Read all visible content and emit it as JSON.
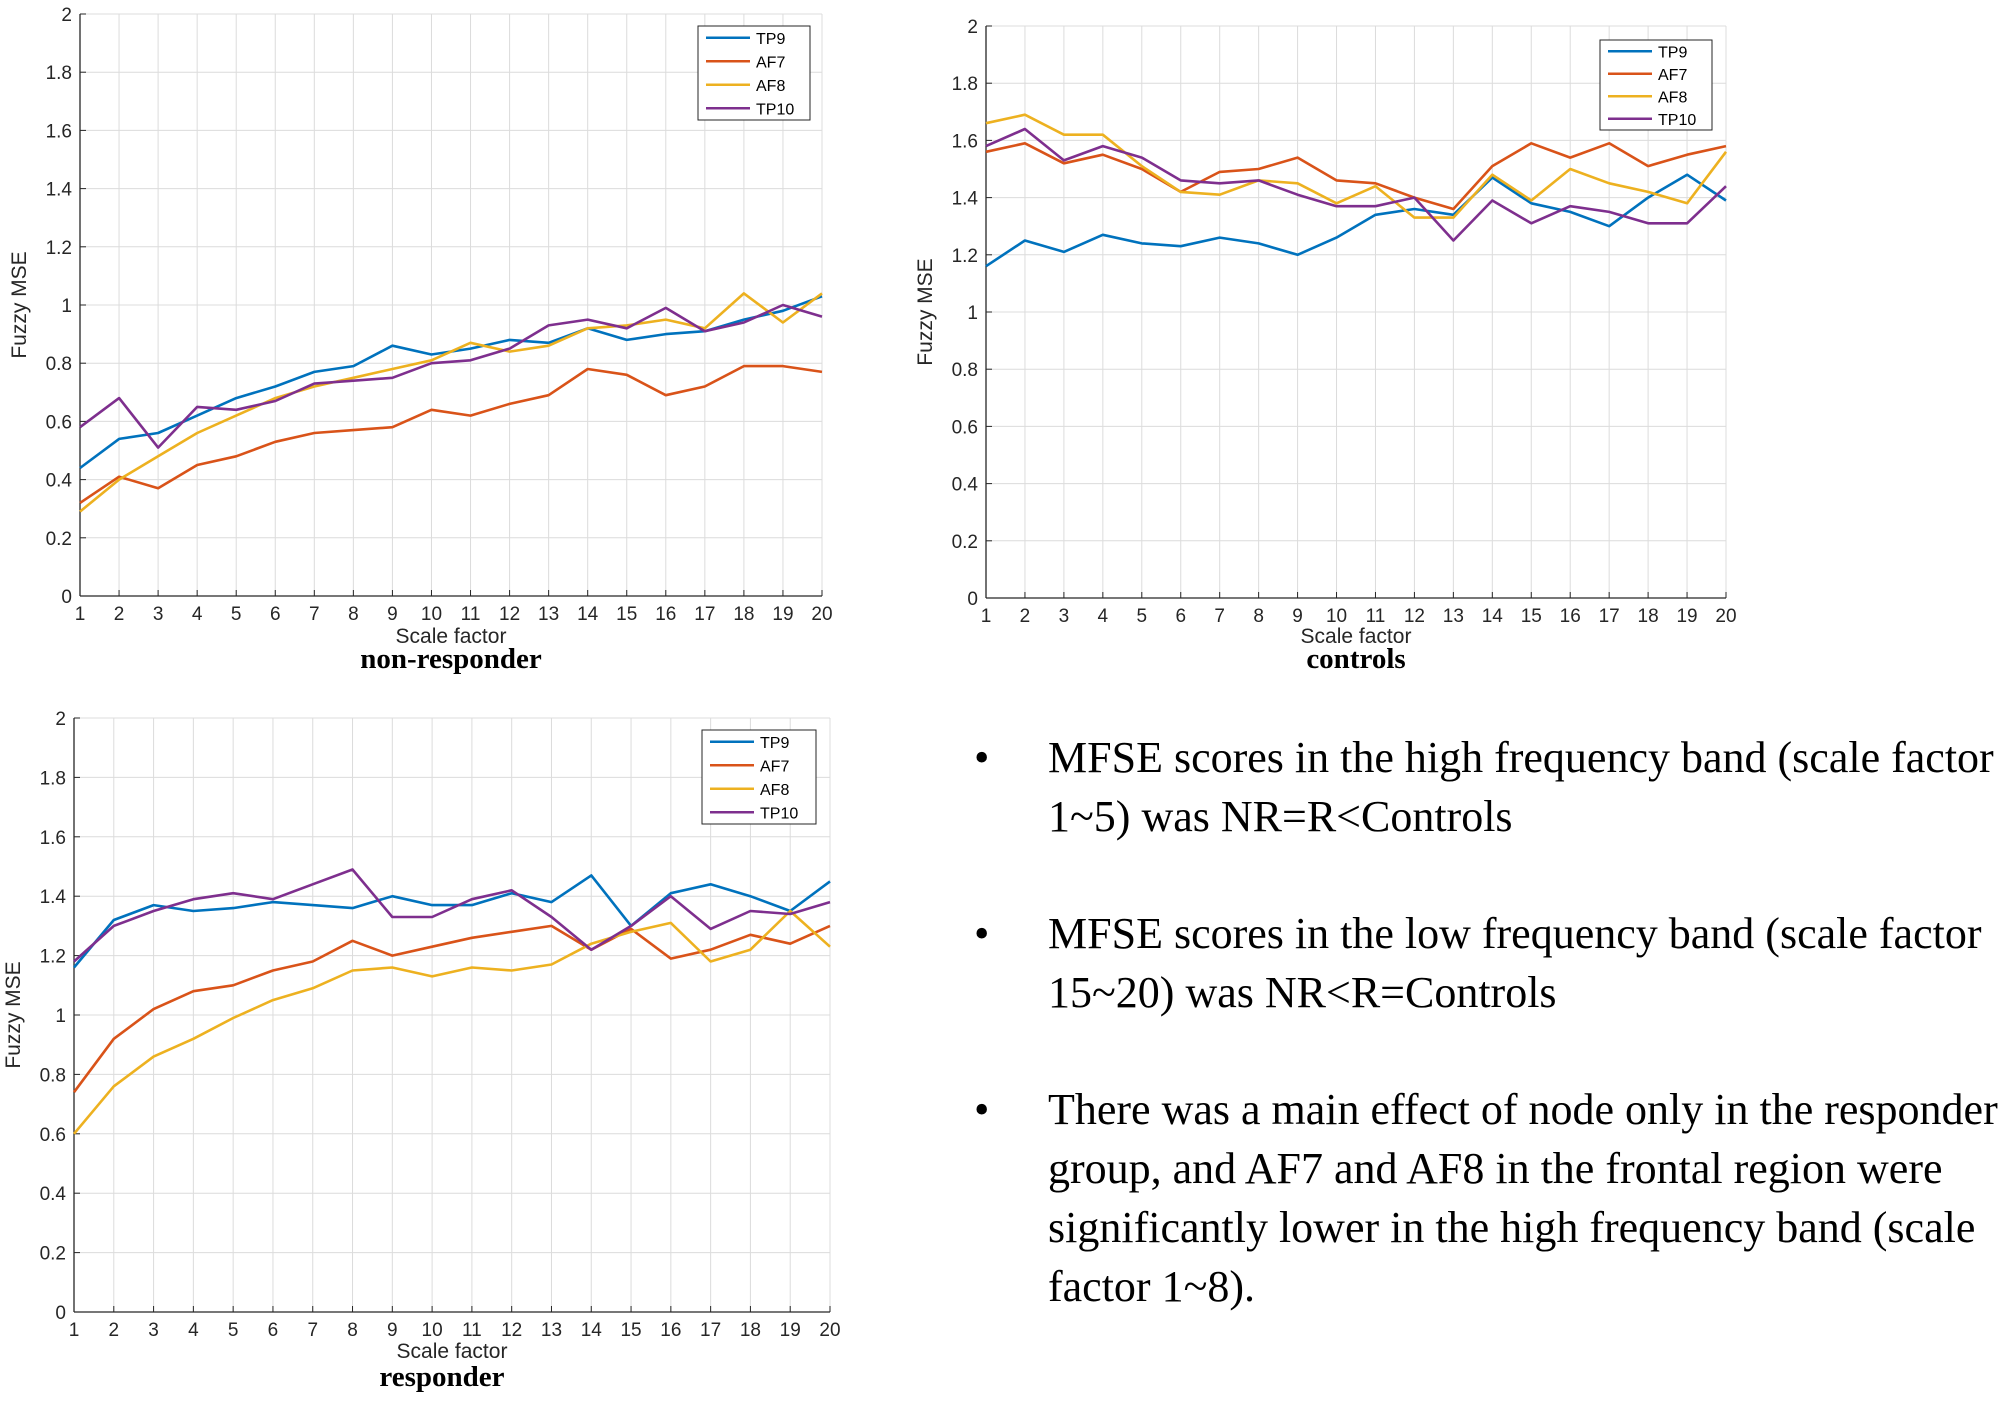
{
  "chart_data": [
    {
      "type": "line",
      "title": "non-responder",
      "xlabel": "Scale factor",
      "ylabel": "Fuzzy MSE",
      "xlim": [
        1,
        20
      ],
      "ylim": [
        0,
        2
      ],
      "x": [
        1,
        2,
        3,
        4,
        5,
        6,
        7,
        8,
        9,
        10,
        11,
        12,
        13,
        14,
        15,
        16,
        17,
        18,
        19,
        20
      ],
      "grid": true,
      "legend_position": "top-right",
      "series": [
        {
          "name": "TP9",
          "color": "#0072BD",
          "values": [
            0.44,
            0.54,
            0.56,
            0.62,
            0.68,
            0.72,
            0.77,
            0.79,
            0.86,
            0.83,
            0.85,
            0.88,
            0.87,
            0.92,
            0.88,
            0.9,
            0.91,
            0.95,
            0.98,
            1.03
          ]
        },
        {
          "name": "AF7",
          "color": "#D95319",
          "values": [
            0.32,
            0.41,
            0.37,
            0.45,
            0.48,
            0.53,
            0.56,
            0.57,
            0.58,
            0.64,
            0.62,
            0.66,
            0.69,
            0.78,
            0.76,
            0.69,
            0.72,
            0.79,
            0.79,
            0.77
          ]
        },
        {
          "name": "AF8",
          "color": "#EDB120",
          "values": [
            0.29,
            0.4,
            0.48,
            0.56,
            0.62,
            0.68,
            0.72,
            0.75,
            0.78,
            0.81,
            0.87,
            0.84,
            0.86,
            0.92,
            0.93,
            0.95,
            0.92,
            1.04,
            0.94,
            1.04
          ]
        },
        {
          "name": "TP10",
          "color": "#7E2F8E",
          "values": [
            0.58,
            0.68,
            0.51,
            0.65,
            0.64,
            0.67,
            0.73,
            0.74,
            0.75,
            0.8,
            0.81,
            0.85,
            0.93,
            0.95,
            0.92,
            0.99,
            0.91,
            0.94,
            1.0,
            0.96
          ]
        }
      ]
    },
    {
      "type": "line",
      "title": "controls",
      "xlabel": "Scale factor",
      "ylabel": "Fuzzy MSE",
      "xlim": [
        1,
        20
      ],
      "ylim": [
        0,
        2
      ],
      "x": [
        1,
        2,
        3,
        4,
        5,
        6,
        7,
        8,
        9,
        10,
        11,
        12,
        13,
        14,
        15,
        16,
        17,
        18,
        19,
        20
      ],
      "grid": true,
      "legend_position": "top-right",
      "series": [
        {
          "name": "TP9",
          "color": "#0072BD",
          "values": [
            1.16,
            1.25,
            1.21,
            1.27,
            1.24,
            1.23,
            1.26,
            1.24,
            1.2,
            1.26,
            1.34,
            1.36,
            1.34,
            1.47,
            1.38,
            1.35,
            1.3,
            1.4,
            1.48,
            1.39
          ]
        },
        {
          "name": "AF7",
          "color": "#D95319",
          "values": [
            1.56,
            1.59,
            1.52,
            1.55,
            1.5,
            1.42,
            1.49,
            1.5,
            1.54,
            1.46,
            1.45,
            1.4,
            1.36,
            1.51,
            1.59,
            1.54,
            1.59,
            1.51,
            1.55,
            1.58
          ]
        },
        {
          "name": "AF8",
          "color": "#EDB120",
          "values": [
            1.66,
            1.69,
            1.62,
            1.62,
            1.51,
            1.42,
            1.41,
            1.46,
            1.45,
            1.38,
            1.44,
            1.33,
            1.33,
            1.48,
            1.39,
            1.5,
            1.45,
            1.42,
            1.38,
            1.56
          ]
        },
        {
          "name": "TP10",
          "color": "#7E2F8E",
          "values": [
            1.58,
            1.64,
            1.53,
            1.58,
            1.54,
            1.46,
            1.45,
            1.46,
            1.41,
            1.37,
            1.37,
            1.4,
            1.25,
            1.39,
            1.31,
            1.37,
            1.35,
            1.31,
            1.31,
            1.44
          ]
        }
      ]
    },
    {
      "type": "line",
      "title": "responder",
      "xlabel": "Scale factor",
      "ylabel": "Fuzzy MSE",
      "xlim": [
        1,
        20
      ],
      "ylim": [
        0,
        2
      ],
      "x": [
        1,
        2,
        3,
        4,
        5,
        6,
        7,
        8,
        9,
        10,
        11,
        12,
        13,
        14,
        15,
        16,
        17,
        18,
        19,
        20
      ],
      "grid": true,
      "legend_position": "top-right",
      "series": [
        {
          "name": "TP9",
          "color": "#0072BD",
          "values": [
            1.16,
            1.32,
            1.37,
            1.35,
            1.36,
            1.38,
            1.37,
            1.36,
            1.4,
            1.37,
            1.37,
            1.41,
            1.38,
            1.47,
            1.3,
            1.41,
            1.44,
            1.4,
            1.35,
            1.45
          ]
        },
        {
          "name": "AF7",
          "color": "#D95319",
          "values": [
            0.74,
            0.92,
            1.02,
            1.08,
            1.1,
            1.15,
            1.18,
            1.25,
            1.2,
            1.23,
            1.26,
            1.28,
            1.3,
            1.22,
            1.29,
            1.19,
            1.22,
            1.27,
            1.24,
            1.3
          ]
        },
        {
          "name": "AF8",
          "color": "#EDB120",
          "values": [
            0.6,
            0.76,
            0.86,
            0.92,
            0.99,
            1.05,
            1.09,
            1.15,
            1.16,
            1.13,
            1.16,
            1.15,
            1.17,
            1.24,
            1.28,
            1.31,
            1.18,
            1.22,
            1.35,
            1.23
          ]
        },
        {
          "name": "TP10",
          "color": "#7E2F8E",
          "values": [
            1.18,
            1.3,
            1.35,
            1.39,
            1.41,
            1.39,
            1.44,
            1.49,
            1.33,
            1.33,
            1.39,
            1.42,
            1.33,
            1.22,
            1.3,
            1.4,
            1.29,
            1.35,
            1.34,
            1.38
          ]
        }
      ]
    }
  ],
  "bullets": [
    "MFSE scores in the high frequency band (scale factor 1~5) was NR=R<Controls",
    "MFSE scores  in the low frequency band (scale factor 15~20) was NR<R=Controls",
    "There was a main effect of node only in the responder group, and AF7 and AF8 in the frontal region were significantly lower in the high frequency band (scale factor 1~8)."
  ],
  "bullet_symbol": "•"
}
